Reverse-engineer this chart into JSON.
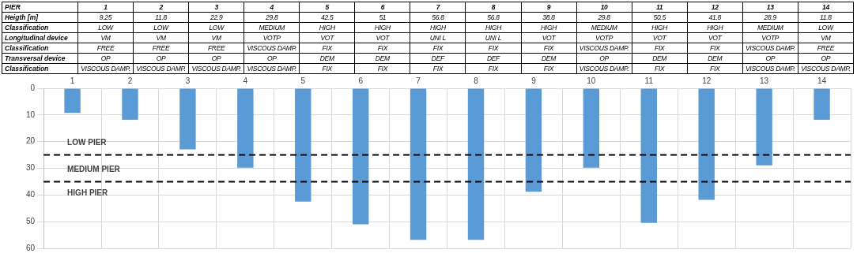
{
  "chart_data": {
    "type": "bar",
    "categories": [
      "1",
      "2",
      "3",
      "4",
      "5",
      "6",
      "7",
      "8",
      "9",
      "10",
      "11",
      "12",
      "13",
      "14"
    ],
    "values": [
      9.25,
      11.8,
      22.9,
      29.8,
      42.5,
      51,
      56.8,
      56.8,
      38.8,
      29.8,
      50.5,
      41.8,
      28.9,
      11.8
    ],
    "color": "#5b9bd5",
    "ylim": [
      60,
      0
    ],
    "yticks": [
      0,
      10,
      20,
      30,
      40,
      50,
      60
    ],
    "grid": true,
    "ref_lines": [
      {
        "axis": "y",
        "value": 25,
        "color": "#000000",
        "line_style": "dashed"
      },
      {
        "axis": "y",
        "value": 35,
        "color": "#000000",
        "line_style": "dashed"
      }
    ],
    "annotations": [
      "PIER",
      "Heigth [m]",
      "9.25",
      "11.8",
      "22.9",
      "29.8",
      "42.5",
      "51",
      "56.8",
      "56.8",
      "38.8",
      "29.8",
      "50.5",
      "41.8",
      "28.9",
      "11.8",
      "Classification",
      "LOW",
      "LOW",
      "LOW",
      "MEDIUM",
      "HIGH",
      "HIGH",
      "HIGH",
      "HIGH",
      "HIGH",
      "MEDIUM",
      "HIGH",
      "HIGH",
      "MEDIUM",
      "LOW",
      "Longitudinal device",
      "VM",
      "VM",
      "VM",
      "VOTP",
      "VOT",
      "VOT",
      "UNI L",
      "UNI L",
      "VOT",
      "VOTP",
      "VOT",
      "VOT",
      "VOTP",
      "VM",
      "Classification",
      "FREE",
      "FREE",
      "FREE",
      "VISCOUS DAMP.",
      "FIX",
      "FIX",
      "FIX",
      "FIX",
      "FIX",
      "VISCOUS DAMP.",
      "FIX",
      "FIX",
      "VISCOUS DAMP.",
      "FREE",
      "Transversal device",
      "OP",
      "OP",
      "OP",
      "OP",
      "DEM",
      "DEM",
      "DEF",
      "DEF",
      "DEM",
      "OP",
      "DEM",
      "DEM",
      "OP",
      "OP",
      "Classification",
      "VISCOUS DAMP.",
      "VISCOUS DAMP.",
      "VISCOUS DAMP.",
      "VISCOUS DAMP.",
      "FIX",
      "FIX",
      "FIX",
      "FIX",
      "FIX",
      "VISCOUS DAMP.",
      "FIX",
      "FIX",
      "VISCOUS DAMP.",
      "VISCOUS DAMP.",
      "LOW PIER",
      "MEDIUM PIER",
      "HIGH PIER"
    ]
  }
}
